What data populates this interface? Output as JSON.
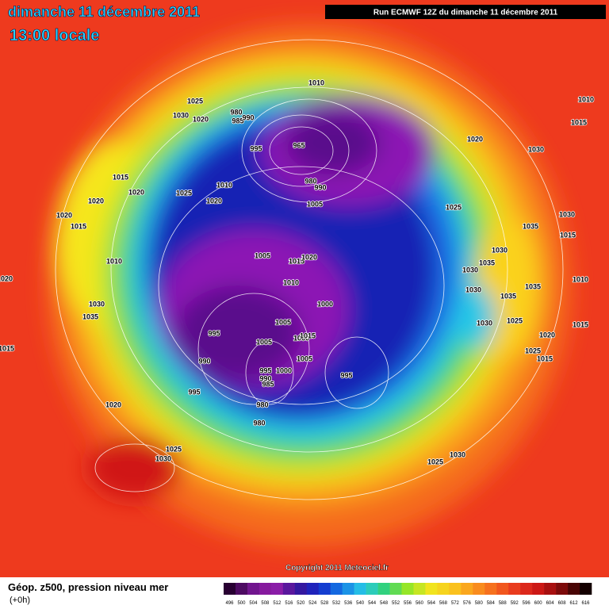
{
  "header": {
    "title": "dimanche 11 décembre 2011",
    "subtitle": "13:00 locale",
    "run": "Run ECMWF 12Z du dimanche 11 décembre 2011"
  },
  "copyright": "Copyright 2011 Meteociel.fr",
  "legend": {
    "title": "Géop. z500, pression niveau mer",
    "step": "(+0h)",
    "levels": [
      496,
      500,
      504,
      508,
      512,
      516,
      520,
      524,
      528,
      532,
      536,
      540,
      544,
      548,
      552,
      556,
      560,
      564,
      568,
      572,
      576,
      580,
      584,
      588,
      592,
      596,
      600,
      604,
      608,
      612,
      616
    ]
  },
  "map_labels": [
    "1010",
    "1025",
    "1030",
    "1020",
    "980",
    "985",
    "990",
    "965",
    "995",
    "980",
    "990",
    "1005",
    "1020",
    "1030",
    "1010",
    "1015",
    "1015",
    "1020",
    "1025",
    "1010",
    "1020",
    "1020",
    "1020",
    "1015",
    "1025",
    "1035",
    "1030",
    "1015",
    "1005",
    "1015",
    "1020",
    "1010",
    "1030",
    "1035",
    "1030",
    "1010",
    "1000",
    "1035",
    "1030",
    "1035",
    "1030",
    "1035",
    "1030",
    "1025",
    "1010",
    "1015",
    "1005",
    "995",
    "1005",
    "1000",
    "1015",
    "1020",
    "1025",
    "1015",
    "990",
    "1005",
    "995",
    "995",
    "1000",
    "990",
    "985",
    "995",
    "1020",
    "980",
    "980",
    "1025",
    "1030",
    "1025",
    "1030",
    "1020",
    "1015"
  ]
}
